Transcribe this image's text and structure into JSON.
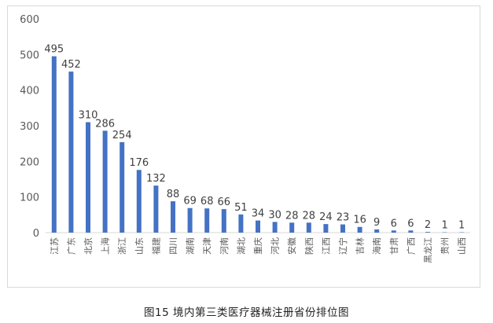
{
  "chart_data": {
    "type": "bar",
    "categories": [
      "江苏",
      "广东",
      "北京",
      "上海",
      "浙江",
      "山东",
      "福建",
      "四川",
      "湖南",
      "天津",
      "河南",
      "湖北",
      "重庆",
      "河北",
      "安徽",
      "陕西",
      "江西",
      "辽宁",
      "吉林",
      "海南",
      "甘肃",
      "广西",
      "黑龙江",
      "贵州",
      "山西"
    ],
    "values": [
      495,
      452,
      310,
      286,
      254,
      176,
      132,
      88,
      69,
      68,
      66,
      51,
      34,
      30,
      28,
      28,
      24,
      23,
      16,
      9,
      6,
      6,
      2,
      1,
      1
    ],
    "ylim": [
      0,
      600
    ],
    "yticks": [
      0,
      100,
      200,
      300,
      400,
      500,
      600
    ],
    "grid": false,
    "title": "",
    "xlabel": "",
    "ylabel": "",
    "colors": {
      "bar": "#4472c4",
      "axis": "#d9d9d9",
      "text": "#595959",
      "label": "#404040"
    }
  },
  "caption": "图15  境内第三类医疗器械注册省份排位图"
}
